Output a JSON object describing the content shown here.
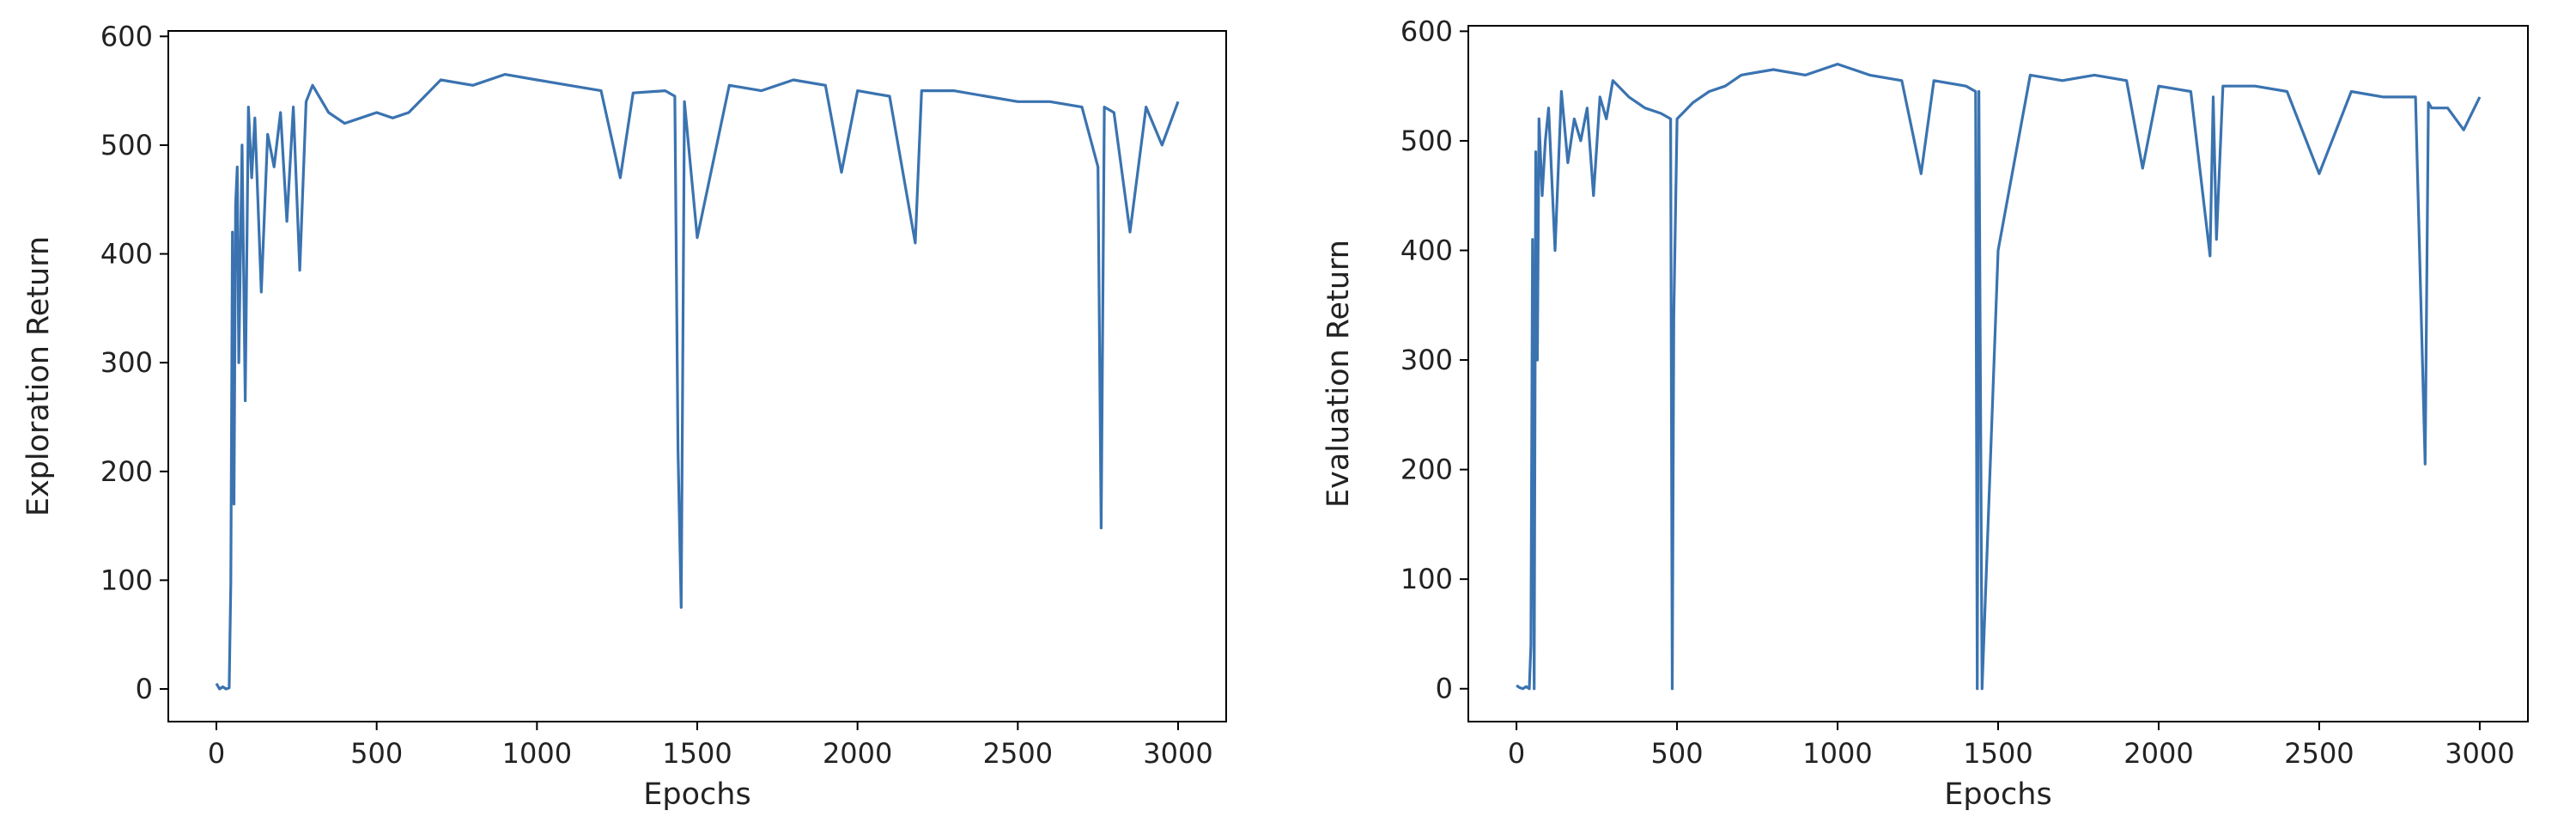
{
  "chart_data": [
    {
      "type": "line",
      "xlabel": "Epochs",
      "ylabel": "Exploration Return",
      "xlim": [
        -150,
        3150
      ],
      "ylim": [
        -30,
        605
      ],
      "xticks": [
        0,
        500,
        1000,
        1500,
        2000,
        2500,
        3000
      ],
      "yticks": [
        0,
        100,
        200,
        300,
        400,
        500,
        600
      ],
      "grid": false,
      "legend": "none",
      "color": "#3a73b0",
      "series": [
        {
          "x": [
            0,
            10,
            20,
            30,
            40,
            45,
            50,
            55,
            60,
            65,
            70,
            80,
            90,
            100,
            110,
            120,
            140,
            160,
            180,
            200,
            220,
            240,
            260,
            280,
            300,
            350,
            400,
            450,
            500,
            550,
            600,
            650,
            700,
            800,
            900,
            1000,
            1100,
            1200,
            1260,
            1300,
            1400,
            1430,
            1440,
            1450,
            1460,
            1500,
            1600,
            1700,
            1800,
            1900,
            1950,
            2000,
            2100,
            2180,
            2200,
            2300,
            2400,
            2500,
            2600,
            2700,
            2750,
            2760,
            2770,
            2800,
            2850,
            2900,
            2950,
            3000
          ],
          "y": [
            5,
            0,
            2,
            0,
            1,
            97,
            420,
            170,
            445,
            480,
            300,
            500,
            265,
            535,
            470,
            525,
            365,
            510,
            480,
            530,
            430,
            535,
            385,
            540,
            555,
            530,
            520,
            525,
            530,
            525,
            530,
            545,
            560,
            555,
            565,
            560,
            555,
            550,
            470,
            548,
            550,
            545,
            220,
            75,
            540,
            415,
            555,
            550,
            560,
            555,
            475,
            550,
            545,
            410,
            550,
            550,
            545,
            540,
            540,
            535,
            480,
            148,
            535,
            530,
            420,
            535,
            500,
            540
          ]
        }
      ]
    },
    {
      "type": "line",
      "xlabel": "Epochs",
      "ylabel": "Evaluation Return",
      "xlim": [
        -150,
        3150
      ],
      "ylim": [
        -30,
        605
      ],
      "xticks": [
        0,
        500,
        1000,
        1500,
        2000,
        2500,
        3000
      ],
      "yticks": [
        0,
        100,
        200,
        300,
        400,
        500,
        600
      ],
      "grid": false,
      "legend": "none",
      "color": "#3a73b0",
      "series": [
        {
          "x": [
            0,
            10,
            20,
            30,
            40,
            45,
            50,
            55,
            60,
            65,
            70,
            80,
            90,
            100,
            120,
            140,
            160,
            180,
            200,
            220,
            240,
            260,
            280,
            300,
            350,
            400,
            450,
            480,
            485,
            490,
            500,
            550,
            600,
            650,
            700,
            800,
            900,
            1000,
            1100,
            1200,
            1260,
            1300,
            1400,
            1430,
            1435,
            1440,
            1450,
            1500,
            1600,
            1700,
            1800,
            1900,
            1950,
            2000,
            2100,
            2160,
            2170,
            2180,
            2200,
            2300,
            2400,
            2500,
            2600,
            2700,
            2800,
            2830,
            2840,
            2850,
            2900,
            2950,
            3000
          ],
          "y": [
            3,
            1,
            0,
            2,
            0,
            40,
            410,
            0,
            490,
            300,
            520,
            450,
            500,
            530,
            400,
            545,
            480,
            520,
            500,
            530,
            450,
            540,
            520,
            555,
            540,
            530,
            525,
            520,
            0,
            340,
            520,
            535,
            545,
            550,
            560,
            565,
            560,
            570,
            560,
            555,
            470,
            555,
            550,
            545,
            0,
            545,
            0,
            400,
            560,
            555,
            560,
            555,
            475,
            550,
            545,
            395,
            540,
            410,
            550,
            550,
            545,
            470,
            545,
            540,
            540,
            205,
            535,
            530,
            530,
            510,
            540
          ]
        }
      ]
    }
  ]
}
